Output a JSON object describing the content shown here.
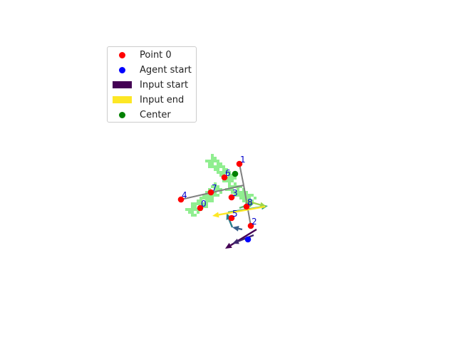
{
  "chart_data": {
    "type": "scatter",
    "title": "",
    "xlabel": "",
    "ylabel": "",
    "axes_visible": false,
    "grid": false,
    "legend_placement": "upper-left",
    "colors": {
      "point": "#ff0000",
      "agent": "#0000ff",
      "center": "#008000",
      "skeleton": "#808080",
      "region": "#90ee90",
      "label": "#0000cc",
      "input_start": "#440154",
      "input_end": "#fde725"
    },
    "legend": [
      {
        "label": "Point 0",
        "kind": "dot",
        "color": "#ff0000"
      },
      {
        "label": "Agent start",
        "kind": "dot",
        "color": "#0000ff"
      },
      {
        "label": "Input start",
        "kind": "patch",
        "color": "#440154"
      },
      {
        "label": "Input end",
        "kind": "patch",
        "color": "#fde725"
      },
      {
        "label": "Center",
        "kind": "dot",
        "color": "#008000"
      }
    ],
    "points": [
      {
        "label": "0",
        "x": 281,
        "y": 292
      },
      {
        "label": "1",
        "x": 336,
        "y": 230
      },
      {
        "label": "2",
        "x": 352,
        "y": 317
      },
      {
        "label": "3",
        "x": 325,
        "y": 277
      },
      {
        "label": "4",
        "x": 254,
        "y": 280
      },
      {
        "label": "5",
        "x": 325,
        "y": 306
      },
      {
        "label": "6",
        "x": 315,
        "y": 249
      },
      {
        "label": "7",
        "x": 296,
        "y": 270
      },
      {
        "label": "8",
        "x": 346,
        "y": 290
      }
    ],
    "center": {
      "x": 330,
      "y": 244
    },
    "agent_start": {
      "x": 348,
      "y": 336
    },
    "junction": {
      "x": 342,
      "y": 260
    },
    "skeleton_edges": [
      [
        4,
        "J"
      ],
      [
        1,
        "J"
      ],
      [
        "J",
        2
      ]
    ],
    "region_bands": [
      {
        "from": [
          292,
          222
        ],
        "to": [
          322,
          252
        ],
        "width": 14
      },
      {
        "from": [
          266,
          298
        ],
        "to": [
          306,
          262
        ],
        "width": 14
      },
      {
        "from": [
          320,
          258
        ],
        "to": [
          352,
          280
        ],
        "width": 12
      }
    ],
    "input_arrows": [
      {
        "from": [
          360,
          322
        ],
        "to": [
          316,
          349
        ],
        "t": 0.0
      },
      {
        "from": [
          356,
          330
        ],
        "to": [
          326,
          342
        ],
        "t": 0.12
      },
      {
        "from": [
          340,
          322
        ],
        "to": [
          326,
          319
        ],
        "t": 0.3
      },
      {
        "from": [
          326,
          319
        ],
        "to": [
          318,
          299
        ],
        "t": 0.42
      },
      {
        "from": [
          320,
          298
        ],
        "to": [
          376,
          289
        ],
        "t": 0.6
      },
      {
        "from": [
          336,
          292
        ],
        "to": [
          358,
          284
        ],
        "t": 0.72
      },
      {
        "from": [
          346,
          282
        ],
        "to": [
          374,
          290
        ],
        "t": 0.85
      },
      {
        "from": [
          372,
          290
        ],
        "to": [
          298,
          303
        ],
        "t": 1.0
      }
    ]
  }
}
